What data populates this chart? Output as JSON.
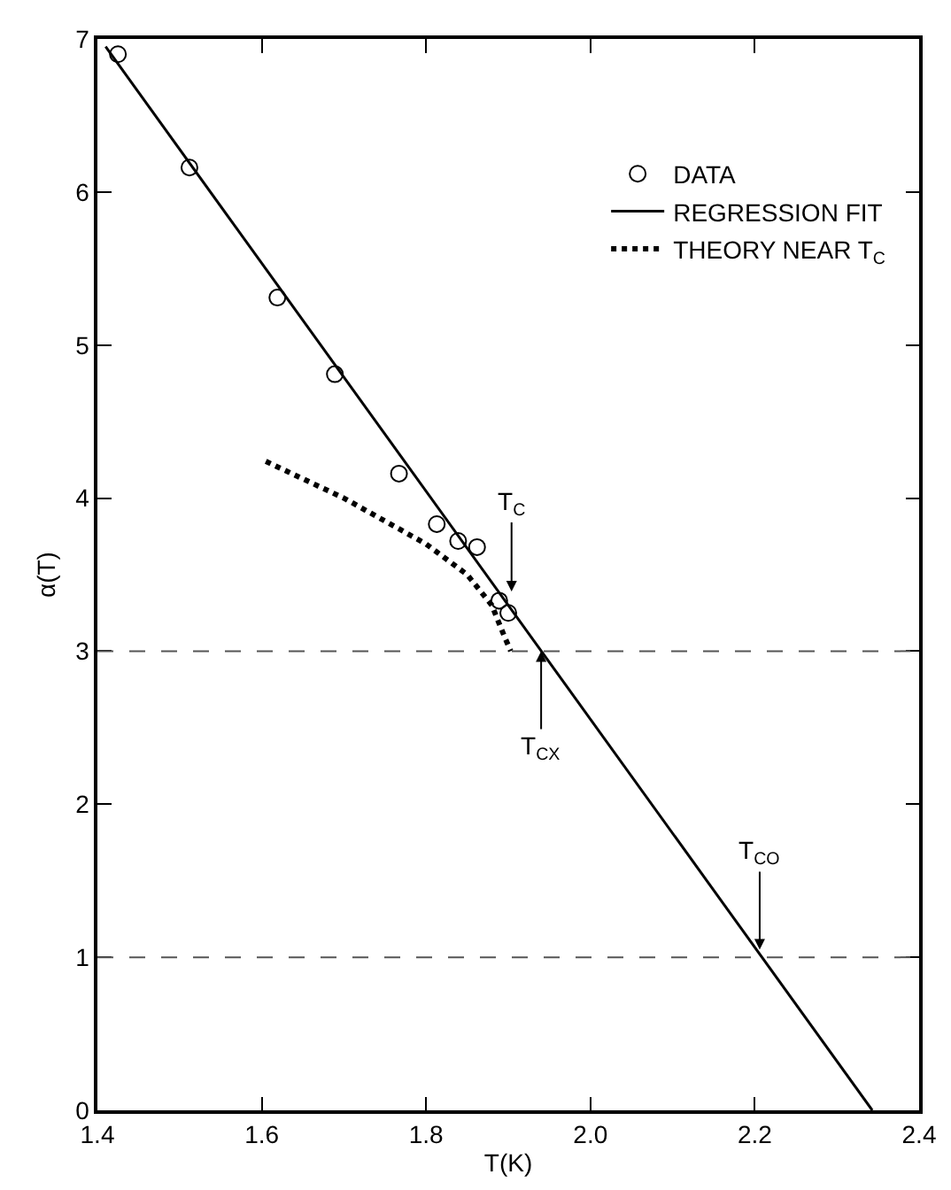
{
  "chart_data": {
    "type": "scatter",
    "xlabel": "T(K)",
    "ylabel": "α(T)",
    "xlim": [
      1.4,
      2.4
    ],
    "xticks": [
      1.4,
      1.6,
      1.8,
      {
        "value": 2.0,
        "label": "2.0"
      },
      2.2,
      2.4
    ],
    "ylim": [
      0,
      7
    ],
    "yticks": [
      0,
      1,
      2,
      3,
      4,
      5,
      6,
      7
    ],
    "grid": false,
    "legend": "top right",
    "series": [
      {
        "name": "DATA",
        "marker": "circle",
        "color": "#000000",
        "x": [
          1.425,
          1.512,
          1.619,
          1.689,
          1.767,
          1.813,
          1.839,
          1.862,
          1.889,
          1.9
        ],
        "values": [
          6.9,
          6.16,
          5.31,
          4.81,
          4.16,
          3.83,
          3.72,
          3.68,
          3.33,
          3.25
        ]
      },
      {
        "name": "REGRESSION FIT",
        "type": "line",
        "line_style": "solid",
        "color": "#000000",
        "x": [
          1.41,
          2.343
        ],
        "values": [
          6.95,
          0
        ]
      },
      {
        "name": "THEORY NEAR T$_{C}$",
        "type": "line",
        "line_style": "dotted",
        "color": "#000000",
        "x": [
          1.605,
          1.7,
          1.8,
          1.85,
          1.88,
          1.895,
          1.903
        ],
        "values": [
          4.24,
          4.0,
          3.7,
          3.5,
          3.3,
          3.1,
          3.0
        ]
      }
    ],
    "ref_lines": [
      {
        "axis": "y",
        "value": 3,
        "line_style": "dashed",
        "color": "#555555"
      },
      {
        "axis": "y",
        "value": 1,
        "line_style": "dashed",
        "color": "#555555"
      }
    ],
    "annotations": [
      {
        "text": "T$_{C}$",
        "x": 1.904,
        "y": 3.39
      },
      {
        "text": "T$_{CX}$",
        "x": 1.94,
        "y": 3
      },
      {
        "text": "T$_{CO}$",
        "x": 2.206,
        "y": 1.05
      }
    ]
  }
}
